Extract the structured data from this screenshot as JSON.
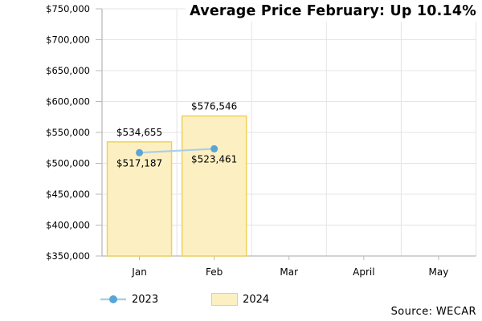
{
  "title": "Average Price February: Up 10.14%",
  "source": "Source: WECAR",
  "legend": {
    "items": [
      {
        "label": "2023",
        "swatch": "line-marker"
      },
      {
        "label": "2024",
        "swatch": "bar"
      }
    ]
  },
  "colors": {
    "bar_fill": "#FCF0C2",
    "bar_stroke": "#EFD158",
    "line": "#A9CFE8",
    "marker": "#58A6D8",
    "grid": "#E4E4E4",
    "axis": "#B9B9B9",
    "text": "#000000",
    "background": "#FFFFFF"
  },
  "chart_data": {
    "type": "combo",
    "title": "Average Price February: Up 10.14%",
    "xlabel": "",
    "ylabel": "",
    "categories": [
      "Jan",
      "Feb",
      "Mar",
      "April",
      "May"
    ],
    "series": [
      {
        "name": "2023",
        "type": "line",
        "values": [
          517187,
          523461,
          null,
          null,
          null
        ],
        "point_labels": [
          "$517,187",
          "$523,461",
          "",
          "",
          ""
        ]
      },
      {
        "name": "2024",
        "type": "bar",
        "values": [
          534655,
          576546,
          null,
          null,
          null
        ],
        "point_labels": [
          "$534,655",
          "$576,546",
          "",
          "",
          ""
        ]
      }
    ],
    "ylim": [
      350000,
      750000
    ],
    "y_tick_step": 50000,
    "y_tick_labels": [
      "$350,000",
      "$400,000",
      "$450,000",
      "$500,000",
      "$550,000",
      "$600,000",
      "$650,000",
      "$700,000",
      "$750,000"
    ],
    "grid": true,
    "legend_position": "bottom",
    "source": "Source: WECAR"
  }
}
